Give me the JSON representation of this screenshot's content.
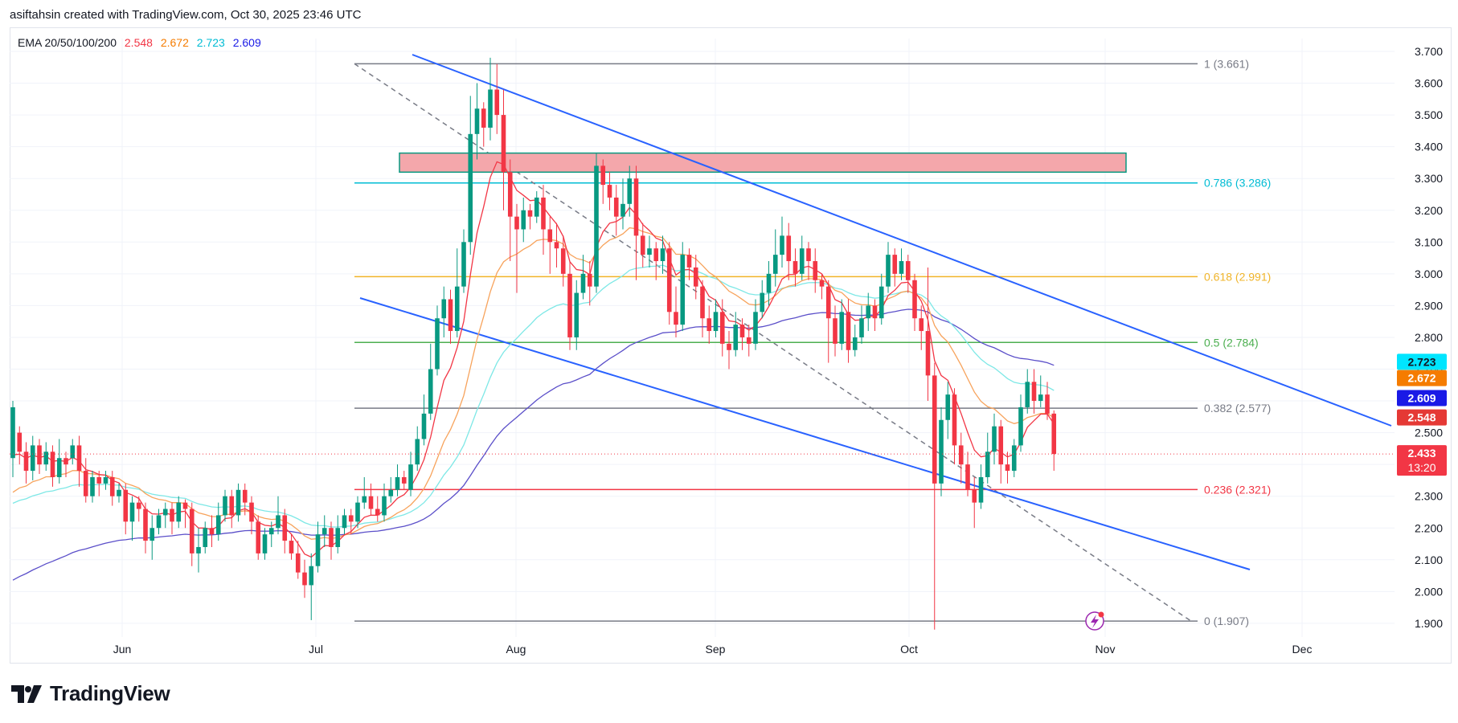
{
  "header": {
    "attribution": "asiftahsin created with TradingView.com, Oct 30, 2025 23:46 UTC"
  },
  "legend": {
    "label": "EMA 20/50/100/200",
    "v20": "2.548",
    "v50": "2.672",
    "v100": "2.723",
    "v200": "2.609"
  },
  "logo": {
    "text": "TradingView"
  },
  "colors": {
    "up": "#089981",
    "down": "#f23645",
    "ema20": "#f23645",
    "ema50": "#f7a35c",
    "ema100": "#7ee8e6",
    "ema200": "#5b4fc9",
    "trend": "#2962ff",
    "zone": "#f4a7ab",
    "zone_border": "#089981"
  },
  "chart_data": {
    "type": "candlestick",
    "title": "EMA 20/50/100/200",
    "x_axis_labels": [
      "Jun",
      "Jul",
      "Aug",
      "Sep",
      "Oct",
      "Nov",
      "Dec"
    ],
    "y_axis_ticks": [
      "3.700",
      "3.600",
      "3.500",
      "3.400",
      "3.300",
      "3.200",
      "3.100",
      "3.000",
      "2.900",
      "2.800",
      "2.700",
      "2.600",
      "2.500",
      "2.400",
      "2.300",
      "2.200",
      "2.100",
      "2.000",
      "1.900"
    ],
    "ylim": [
      1.88,
      3.75
    ],
    "fib_levels": [
      {
        "label": "1 (3.661)",
        "value": 3.661,
        "color": "#787b86"
      },
      {
        "label": "0.786 (3.286)",
        "value": 3.286,
        "color": "#00bcd4"
      },
      {
        "label": "0.618 (2.991)",
        "value": 2.991,
        "color": "#f0b429"
      },
      {
        "label": "0.5 (2.784)",
        "value": 2.784,
        "color": "#4caf50"
      },
      {
        "label": "0.382 (2.577)",
        "value": 2.577,
        "color": "#787b86"
      },
      {
        "label": "0.236 (2.321)",
        "value": 2.321,
        "color": "#f23645"
      },
      {
        "label": "0 (1.907)",
        "value": 1.907,
        "color": "#787b86"
      }
    ],
    "price_badges": [
      {
        "label": "2.723",
        "value": 2.723,
        "bg": "#00e5ff",
        "fg": "#131722"
      },
      {
        "label": "2.672",
        "value": 2.672,
        "bg": "#f57c00",
        "fg": "#ffffff"
      },
      {
        "label": "2.609",
        "value": 2.609,
        "bg": "#1a1ae6",
        "fg": "#ffffff"
      },
      {
        "label": "2.548",
        "value": 2.548,
        "bg": "#e53935",
        "fg": "#ffffff"
      },
      {
        "label": "2.433",
        "value": 2.433,
        "bg": "#f23645",
        "fg": "#ffffff",
        "sub": "13:20"
      }
    ],
    "last_price": 2.433,
    "supply_zone": {
      "top": 3.38,
      "bottom": 3.32
    },
    "candles": [
      [
        2.42,
        2.58,
        2.6,
        2.36
      ],
      [
        2.5,
        2.44,
        2.52,
        2.4
      ],
      [
        2.44,
        2.38,
        2.47,
        2.34
      ],
      [
        2.38,
        2.46,
        2.49,
        2.35
      ],
      [
        2.46,
        2.4,
        2.48,
        2.37
      ],
      [
        2.4,
        2.44,
        2.47,
        2.38
      ],
      [
        2.44,
        2.36,
        2.46,
        2.33
      ],
      [
        2.36,
        2.42,
        2.48,
        2.34
      ],
      [
        2.42,
        2.4,
        2.44,
        2.36
      ],
      [
        2.42,
        2.46,
        2.48,
        2.4
      ],
      [
        2.46,
        2.38,
        2.49,
        2.33
      ],
      [
        2.38,
        2.3,
        2.42,
        2.28
      ],
      [
        2.3,
        2.36,
        2.38,
        2.28
      ],
      [
        2.36,
        2.34,
        2.38,
        2.3
      ],
      [
        2.34,
        2.36,
        2.38,
        2.32
      ],
      [
        2.36,
        2.3,
        2.38,
        2.27
      ],
      [
        2.3,
        2.32,
        2.34,
        2.28
      ],
      [
        2.32,
        2.22,
        2.34,
        2.18
      ],
      [
        2.22,
        2.28,
        2.3,
        2.16
      ],
      [
        2.28,
        2.26,
        2.3,
        2.22
      ],
      [
        2.26,
        2.16,
        2.28,
        2.12
      ],
      [
        2.16,
        2.2,
        2.24,
        2.1
      ],
      [
        2.2,
        2.24,
        2.26,
        2.18
      ],
      [
        2.24,
        2.26,
        2.28,
        2.2
      ],
      [
        2.26,
        2.22,
        2.28,
        2.18
      ],
      [
        2.22,
        2.28,
        2.3,
        2.2
      ],
      [
        2.28,
        2.26,
        2.29,
        2.2
      ],
      [
        2.26,
        2.12,
        2.28,
        2.08
      ],
      [
        2.12,
        2.14,
        2.2,
        2.06
      ],
      [
        2.14,
        2.2,
        2.22,
        2.12
      ],
      [
        2.2,
        2.18,
        2.24,
        2.14
      ],
      [
        2.18,
        2.24,
        2.28,
        2.16
      ],
      [
        2.24,
        2.3,
        2.32,
        2.22
      ],
      [
        2.3,
        2.24,
        2.32,
        2.2
      ],
      [
        2.24,
        2.32,
        2.34,
        2.22
      ],
      [
        2.32,
        2.28,
        2.34,
        2.24
      ],
      [
        2.28,
        2.22,
        2.3,
        2.18
      ],
      [
        2.22,
        2.12,
        2.24,
        2.1
      ],
      [
        2.12,
        2.18,
        2.2,
        2.1
      ],
      [
        2.18,
        2.2,
        2.22,
        2.14
      ],
      [
        2.2,
        2.24,
        2.3,
        2.18
      ],
      [
        2.24,
        2.16,
        2.26,
        2.12
      ],
      [
        2.16,
        2.12,
        2.18,
        2.1
      ],
      [
        2.12,
        2.06,
        2.16,
        2.04
      ],
      [
        2.06,
        2.02,
        2.1,
        1.98
      ],
      [
        2.02,
        2.08,
        2.12,
        1.91
      ],
      [
        2.08,
        2.18,
        2.22,
        2.06
      ],
      [
        2.18,
        2.2,
        2.24,
        2.14
      ],
      [
        2.2,
        2.14,
        2.22,
        2.1
      ],
      [
        2.14,
        2.2,
        2.24,
        2.12
      ],
      [
        2.2,
        2.24,
        2.26,
        2.18
      ],
      [
        2.24,
        2.22,
        2.26,
        2.18
      ],
      [
        2.22,
        2.28,
        2.3,
        2.2
      ],
      [
        2.28,
        2.3,
        2.36,
        2.26
      ],
      [
        2.3,
        2.26,
        2.34,
        2.24
      ],
      [
        2.26,
        2.24,
        2.3,
        2.22
      ],
      [
        2.24,
        2.3,
        2.34,
        2.22
      ],
      [
        2.3,
        2.32,
        2.36,
        2.28
      ],
      [
        2.32,
        2.36,
        2.4,
        2.3
      ],
      [
        2.36,
        2.34,
        2.38,
        2.32
      ],
      [
        2.32,
        2.4,
        2.44,
        2.3
      ],
      [
        2.4,
        2.48,
        2.52,
        2.38
      ],
      [
        2.48,
        2.56,
        2.62,
        2.46
      ],
      [
        2.56,
        2.7,
        2.78,
        2.54
      ],
      [
        2.7,
        2.86,
        2.9,
        2.68
      ],
      [
        2.86,
        2.92,
        2.96,
        2.8
      ],
      [
        2.92,
        2.82,
        2.95,
        2.78
      ],
      [
        2.82,
        2.96,
        3.08,
        2.8
      ],
      [
        2.96,
        3.1,
        3.14,
        2.94
      ],
      [
        3.1,
        3.44,
        3.56,
        3.06
      ],
      [
        3.44,
        3.52,
        3.6,
        3.36
      ],
      [
        3.52,
        3.46,
        3.54,
        3.4
      ],
      [
        3.46,
        3.58,
        3.68,
        3.42
      ],
      [
        3.58,
        3.5,
        3.66,
        3.44
      ],
      [
        3.5,
        3.32,
        3.58,
        3.2
      ],
      [
        3.32,
        3.18,
        3.36,
        3.04
      ],
      [
        3.18,
        3.14,
        3.22,
        2.94
      ],
      [
        3.14,
        3.2,
        3.24,
        3.1
      ],
      [
        3.2,
        3.18,
        3.22,
        3.14
      ],
      [
        3.18,
        3.24,
        3.26,
        3.16
      ],
      [
        3.24,
        3.14,
        3.28,
        3.06
      ],
      [
        3.14,
        3.1,
        3.18,
        3.0
      ],
      [
        3.1,
        3.08,
        3.16,
        3.02
      ],
      [
        3.08,
        3.0,
        3.12,
        2.96
      ],
      [
        3.0,
        2.8,
        3.04,
        2.76
      ],
      [
        2.8,
        2.94,
        2.98,
        2.76
      ],
      [
        2.94,
        3.0,
        3.06,
        2.92
      ],
      [
        3.0,
        2.96,
        3.04,
        2.9
      ],
      [
        2.96,
        3.34,
        3.38,
        2.94
      ],
      [
        3.34,
        3.28,
        3.36,
        3.22
      ],
      [
        3.28,
        3.24,
        3.32,
        3.2
      ],
      [
        3.24,
        3.18,
        3.28,
        3.12
      ],
      [
        3.18,
        3.22,
        3.3,
        3.14
      ],
      [
        3.22,
        3.3,
        3.34,
        3.18
      ],
      [
        3.3,
        3.12,
        3.34,
        2.98
      ],
      [
        3.12,
        3.06,
        3.16,
        3.02
      ],
      [
        3.06,
        3.08,
        3.12,
        3.02
      ],
      [
        3.08,
        3.04,
        3.1,
        2.98
      ],
      [
        3.04,
        3.08,
        3.12,
        3.0
      ],
      [
        3.08,
        2.88,
        3.1,
        2.84
      ],
      [
        2.88,
        2.84,
        2.96,
        2.8
      ],
      [
        2.84,
        3.06,
        3.1,
        2.82
      ],
      [
        3.06,
        3.02,
        3.08,
        2.98
      ],
      [
        3.02,
        2.96,
        3.06,
        2.92
      ],
      [
        2.96,
        2.86,
        2.98,
        2.8
      ],
      [
        2.86,
        2.82,
        2.9,
        2.78
      ],
      [
        2.82,
        2.88,
        2.92,
        2.8
      ],
      [
        2.88,
        2.78,
        2.92,
        2.74
      ],
      [
        2.78,
        2.76,
        2.82,
        2.7
      ],
      [
        2.76,
        2.84,
        2.88,
        2.74
      ],
      [
        2.84,
        2.8,
        2.86,
        2.76
      ],
      [
        2.8,
        2.78,
        2.84,
        2.74
      ],
      [
        2.78,
        2.88,
        2.92,
        2.76
      ],
      [
        2.88,
        2.94,
        2.98,
        2.86
      ],
      [
        2.94,
        3.0,
        3.04,
        2.9
      ],
      [
        3.0,
        3.06,
        3.14,
        2.96
      ],
      [
        3.06,
        3.12,
        3.18,
        3.02
      ],
      [
        3.12,
        3.04,
        3.16,
        2.98
      ],
      [
        3.04,
        3.0,
        3.08,
        2.96
      ],
      [
        3.0,
        3.08,
        3.12,
        2.98
      ],
      [
        3.08,
        3.04,
        3.1,
        2.98
      ],
      [
        3.04,
        2.98,
        3.08,
        2.94
      ],
      [
        2.98,
        2.96,
        3.0,
        2.92
      ],
      [
        2.96,
        2.86,
        2.98,
        2.72
      ],
      [
        2.86,
        2.78,
        2.9,
        2.74
      ],
      [
        2.78,
        2.88,
        2.92,
        2.76
      ],
      [
        2.88,
        2.76,
        2.92,
        2.72
      ],
      [
        2.76,
        2.8,
        2.84,
        2.74
      ],
      [
        2.8,
        2.86,
        2.9,
        2.78
      ],
      [
        2.86,
        2.9,
        2.94,
        2.82
      ],
      [
        2.9,
        2.86,
        2.92,
        2.82
      ],
      [
        2.86,
        2.96,
        3.0,
        2.84
      ],
      [
        2.96,
        3.06,
        3.1,
        2.94
      ],
      [
        3.06,
        3.0,
        3.08,
        2.96
      ],
      [
        3.0,
        3.04,
        3.08,
        2.98
      ],
      [
        3.04,
        2.98,
        3.06,
        2.94
      ],
      [
        2.98,
        2.86,
        3.0,
        2.82
      ],
      [
        2.86,
        2.82,
        2.9,
        2.76
      ],
      [
        2.82,
        2.68,
        3.02,
        2.6
      ],
      [
        2.68,
        2.34,
        2.72,
        1.88
      ],
      [
        2.34,
        2.54,
        2.58,
        2.3
      ],
      [
        2.54,
        2.62,
        2.66,
        2.48
      ],
      [
        2.62,
        2.46,
        2.64,
        2.4
      ],
      [
        2.46,
        2.4,
        2.5,
        2.34
      ],
      [
        2.4,
        2.32,
        2.44,
        2.3
      ],
      [
        2.32,
        2.28,
        2.36,
        2.2
      ],
      [
        2.28,
        2.36,
        2.4,
        2.26
      ],
      [
        2.36,
        2.44,
        2.5,
        2.34
      ],
      [
        2.44,
        2.52,
        2.56,
        2.4
      ],
      [
        2.52,
        2.4,
        2.54,
        2.34
      ],
      [
        2.4,
        2.38,
        2.44,
        2.34
      ],
      [
        2.38,
        2.46,
        2.48,
        2.36
      ],
      [
        2.46,
        2.58,
        2.62,
        2.44
      ],
      [
        2.58,
        2.66,
        2.7,
        2.56
      ],
      [
        2.66,
        2.6,
        2.7,
        2.56
      ],
      [
        2.6,
        2.62,
        2.68,
        2.58
      ],
      [
        2.62,
        2.56,
        2.66,
        2.54
      ],
      [
        2.56,
        2.433,
        2.57,
        2.38
      ]
    ]
  }
}
